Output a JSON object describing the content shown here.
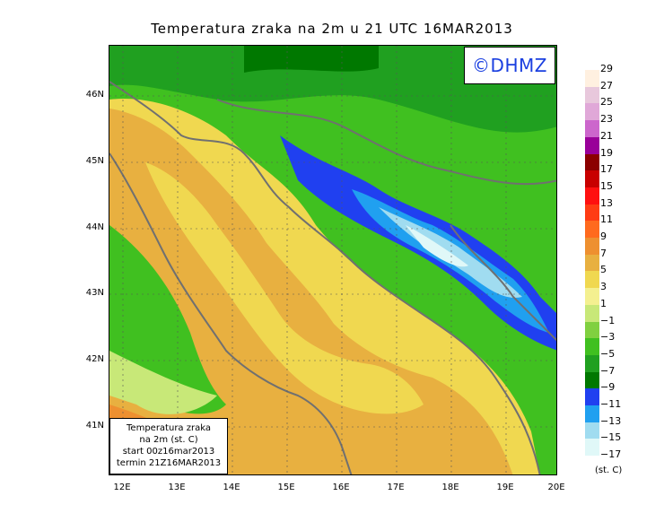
{
  "title": "Temperatura zraka na 2m u 21 UTC 16MAR2013",
  "logo": "©DHMZ",
  "info": {
    "line1": "Temperatura zraka",
    "line2": "na 2m (st. C)",
    "line3": "start 00z16mar2013",
    "line4": "termin 21Z16MAR2013"
  },
  "lat_labels": [
    "46N",
    "45N",
    "44N",
    "43N",
    "42N",
    "41N"
  ],
  "lon_labels": [
    "12E",
    "13E",
    "14E",
    "15E",
    "16E",
    "17E",
    "18E",
    "19E",
    "20E"
  ],
  "legend": {
    "labels": [
      "29",
      "27",
      "25",
      "23",
      "21",
      "19",
      "17",
      "15",
      "13",
      "11",
      "9",
      "7",
      "5",
      "3",
      "1",
      "−1",
      "−3",
      "−5",
      "−7",
      "−9",
      "−11",
      "−13",
      "−15",
      "−17"
    ],
    "colors": [
      "#fff0e0",
      "#e8c8dc",
      "#e0a8d8",
      "#cc66cc",
      "#990099",
      "#8b0000",
      "#c80000",
      "#ff1010",
      "#ff3c14",
      "#ff6a1e",
      "#ee9030",
      "#e8b040",
      "#f0d850",
      "#f4f090",
      "#c8e878",
      "#80d040",
      "#40c020",
      "#20a020",
      "#007800",
      "#2040f0",
      "#20a0f0",
      "#a0dcf0",
      "#e0f8f8"
    ],
    "units": "(st. C)"
  }
}
